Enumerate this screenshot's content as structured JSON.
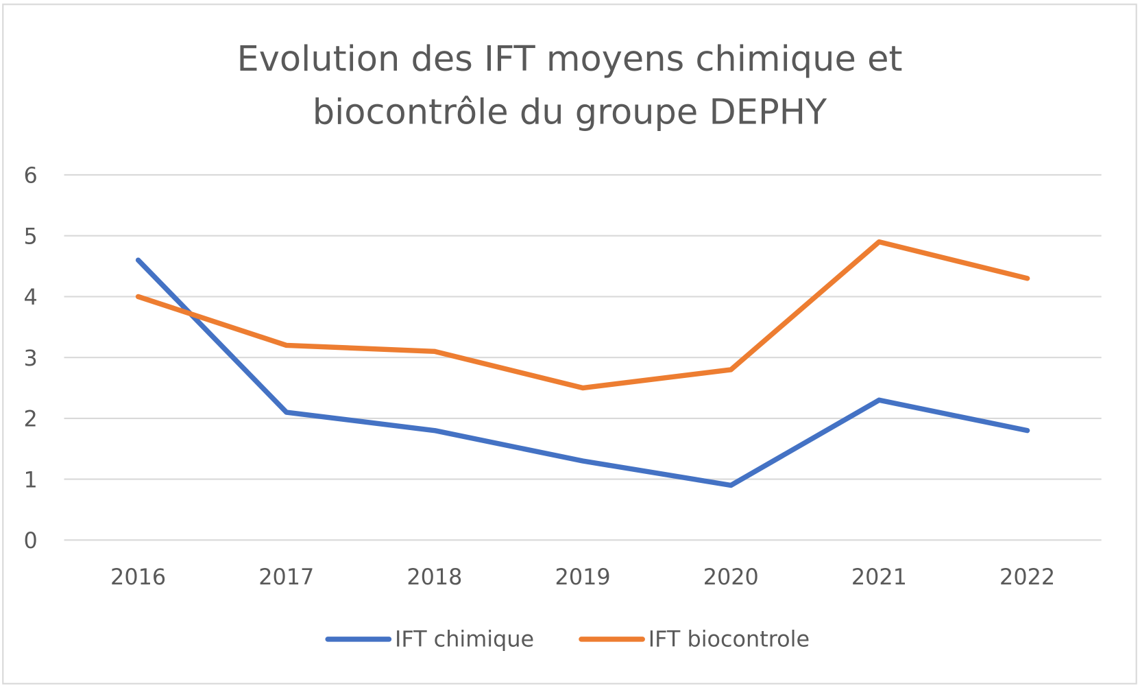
{
  "chart_data": {
    "type": "line",
    "title_lines": [
      "Evolution des IFT moyens chimique et",
      "biocontrôle du groupe DEPHY"
    ],
    "categories": [
      "2016",
      "2017",
      "2018",
      "2019",
      "2020",
      "2021",
      "2022"
    ],
    "ylim": [
      0,
      6
    ],
    "yticks": [
      "0",
      "1",
      "2",
      "3",
      "4",
      "5",
      "6"
    ],
    "grid": true,
    "legend_position": "bottom",
    "series": [
      {
        "name": "IFT chimique",
        "color": "#4472C4",
        "values": [
          4.6,
          2.1,
          1.8,
          1.3,
          0.9,
          2.3,
          1.8
        ]
      },
      {
        "name": "IFT biocontrole",
        "color": "#ED7D31",
        "values": [
          4.0,
          3.2,
          3.1,
          2.5,
          2.8,
          4.9,
          4.3
        ]
      }
    ]
  }
}
